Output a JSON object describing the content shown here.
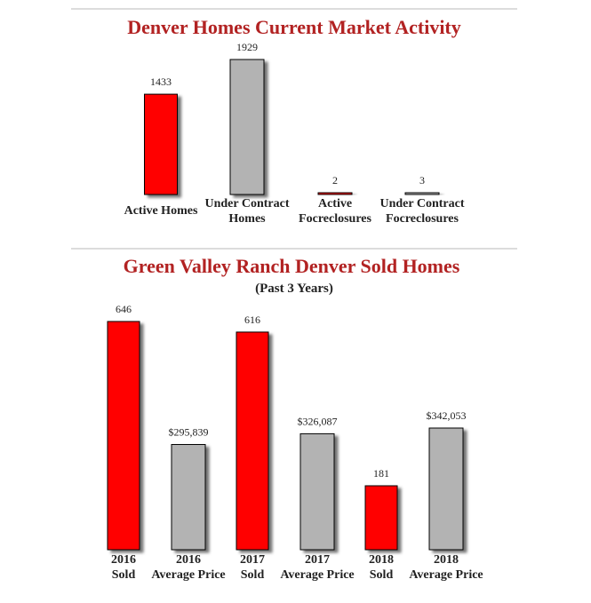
{
  "colors": {
    "red": "#ff0000",
    "gray": "#b3b3b3",
    "title": "#b22222",
    "rule": "#b9b9b9"
  },
  "chart_data": [
    {
      "type": "bar",
      "title": "Denver Homes Current Market Activity",
      "categories": [
        "Active Homes",
        "Under Contract Homes",
        "Active Focreclosures",
        "Under Contract Focreclosures"
      ],
      "category_lines": [
        [
          "Active Homes"
        ],
        [
          "Under Contract",
          "Homes"
        ],
        [
          "Active",
          "Focreclosures"
        ],
        [
          "Under Contract",
          "Focreclosures"
        ]
      ],
      "values": [
        1433,
        1929,
        2,
        3
      ],
      "labels": [
        "1433",
        "1929",
        "2",
        "3"
      ],
      "bar_colors": [
        "red",
        "gray",
        "red",
        "gray"
      ],
      "ylim": [
        0,
        1929
      ]
    },
    {
      "type": "bar",
      "title": "Green Valley Ranch Denver Sold Homes",
      "subtitle": "(Past 3 Years)",
      "categories": [
        "2016 Sold",
        "2016 Average Price",
        "2017 Sold",
        "2017 Average Price",
        "2018 Sold",
        "2018 Average Price"
      ],
      "category_lines": [
        [
          "2016",
          "Sold"
        ],
        [
          "2016",
          "Average Price"
        ],
        [
          "2017",
          "Sold"
        ],
        [
          "2017",
          "Average Price"
        ],
        [
          "2018",
          "Sold"
        ],
        [
          "2018",
          "Average Price"
        ]
      ],
      "values": [
        646,
        295839,
        616,
        326087,
        181,
        342053
      ],
      "labels": [
        "646",
        "$295,839",
        "616",
        "$326,087",
        "181",
        "$342,053"
      ],
      "bar_colors": [
        "red",
        "gray",
        "red",
        "gray",
        "red",
        "gray"
      ]
    }
  ]
}
